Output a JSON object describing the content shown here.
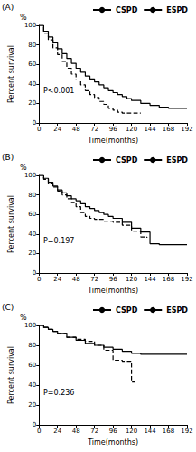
{
  "chart_data": [
    {
      "type": "line",
      "title": "(A)",
      "y_unit": "%",
      "ylabel": "Percent survival",
      "xlabel": "Time(months)",
      "annotations": [
        "P<0.001"
      ],
      "legend": "upper right",
      "grid": false,
      "xlim": [
        0,
        192
      ],
      "xticks": [
        0,
        24,
        48,
        72,
        96,
        120,
        144,
        168,
        192
      ],
      "ylim": [
        0,
        100
      ],
      "yticks": [
        0,
        20,
        40,
        60,
        80,
        100
      ],
      "series": [
        {
          "name": "CSPD",
          "color": "#000000",
          "line_style": "solid",
          "x": [
            0,
            6,
            12,
            18,
            24,
            30,
            36,
            42,
            48,
            54,
            60,
            66,
            72,
            78,
            84,
            90,
            96,
            102,
            108,
            114,
            120,
            132,
            144,
            156,
            168,
            192
          ],
          "values": [
            100,
            94,
            88,
            82,
            76,
            71,
            66,
            61,
            56,
            52,
            48,
            45,
            42,
            39,
            36,
            33,
            31,
            29,
            27,
            25,
            23,
            20,
            18,
            16,
            15,
            15
          ]
        },
        {
          "name": "ESPD",
          "color": "#000000",
          "line_style": "dashed",
          "x": [
            0,
            6,
            12,
            18,
            24,
            30,
            36,
            42,
            48,
            54,
            60,
            66,
            72,
            78,
            84,
            90,
            96,
            102,
            108,
            120,
            132
          ],
          "values": [
            100,
            92,
            85,
            77,
            70,
            63,
            56,
            50,
            44,
            39,
            33,
            29,
            26,
            22,
            19,
            15,
            13,
            11,
            10,
            10,
            10
          ]
        }
      ]
    },
    {
      "type": "line",
      "title": "(B)",
      "y_unit": "%",
      "ylabel": "Percent survival",
      "xlabel": "Time(months)",
      "annotations": [
        "P=0.197"
      ],
      "legend": "upper right",
      "grid": false,
      "xlim": [
        0,
        192
      ],
      "xticks": [
        0,
        24,
        48,
        72,
        96,
        120,
        144,
        168,
        192
      ],
      "ylim": [
        0,
        100
      ],
      "yticks": [
        0,
        20,
        40,
        60,
        80,
        100
      ],
      "series": [
        {
          "name": "CSPD",
          "color": "#000000",
          "line_style": "solid",
          "x": [
            0,
            6,
            12,
            18,
            24,
            30,
            36,
            42,
            48,
            54,
            60,
            66,
            72,
            78,
            84,
            90,
            96,
            108,
            120,
            132,
            144,
            156,
            192
          ],
          "values": [
            100,
            97,
            93,
            89,
            85,
            82,
            79,
            76,
            74,
            71,
            68,
            66,
            64,
            62,
            60,
            58,
            56,
            52,
            46,
            42,
            30,
            29,
            29
          ]
        },
        {
          "name": "ESPD",
          "color": "#000000",
          "line_style": "dashed",
          "x": [
            0,
            6,
            12,
            18,
            24,
            30,
            36,
            42,
            48,
            54,
            60,
            66,
            72,
            84,
            96,
            108,
            120,
            132,
            140
          ],
          "values": [
            100,
            96,
            92,
            88,
            84,
            80,
            76,
            72,
            68,
            62,
            58,
            56,
            55,
            53,
            52,
            49,
            43,
            37,
            36
          ]
        }
      ]
    },
    {
      "type": "line",
      "title": "(C)",
      "y_unit": "%",
      "ylabel": "Percent survival",
      "xlabel": "Time(months)",
      "annotations": [
        "P=0.236"
      ],
      "legend": "upper right",
      "grid": false,
      "xlim": [
        0,
        192
      ],
      "xticks": [
        0,
        24,
        48,
        72,
        96,
        120,
        144,
        168,
        192
      ],
      "ylim": [
        0,
        100
      ],
      "yticks": [
        0,
        20,
        40,
        60,
        80,
        100
      ],
      "series": [
        {
          "name": "CSPD",
          "color": "#000000",
          "line_style": "solid",
          "x": [
            0,
            6,
            12,
            18,
            24,
            36,
            48,
            60,
            72,
            84,
            96,
            108,
            120,
            132,
            144,
            168,
            192
          ],
          "values": [
            100,
            98,
            96,
            94,
            92,
            88,
            85,
            82,
            80,
            78,
            76,
            74,
            72,
            71,
            71,
            71,
            71
          ]
        },
        {
          "name": "ESPD",
          "color": "#000000",
          "line_style": "dashed",
          "x": [
            0,
            6,
            12,
            18,
            24,
            36,
            48,
            60,
            72,
            84,
            96,
            108,
            114,
            120,
            124
          ],
          "values": [
            100,
            98,
            96,
            94,
            92,
            88,
            86,
            84,
            80,
            75,
            65,
            64,
            64,
            43,
            43
          ]
        }
      ]
    }
  ]
}
